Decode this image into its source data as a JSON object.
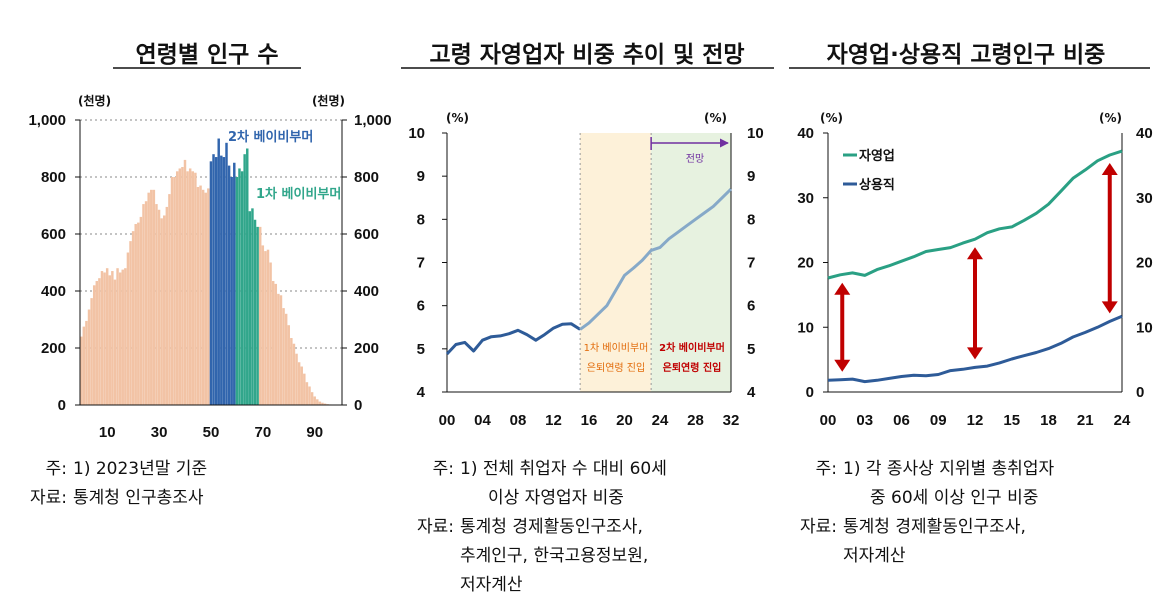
{
  "charts": [
    {
      "title": "연령별 인구 수",
      "unit_left": "(천명)",
      "unit_right": "(천명)",
      "annotations": [
        "2차 베이비부머",
        "1차 베이비부머"
      ],
      "notes": [
        {
          "prefix": "주:",
          "text": "1) 2023년말 기준"
        },
        {
          "prefix": "자료:",
          "text": "통계청 인구총조사"
        }
      ]
    },
    {
      "title": "고령 자영업자 비중 추이 및 전망",
      "unit_left": "(%)",
      "unit_right": "(%)",
      "annotations": [
        "전망",
        "1차 베이비부머",
        "은퇴연령 진입",
        "2차 베이비부머",
        "은퇴연령 진입"
      ],
      "notes": [
        {
          "prefix": "주:",
          "text": "1) 전체 취업자 수 대비 60세"
        },
        {
          "prefix": "",
          "text": "이상 자영업자 비중"
        },
        {
          "prefix": "자료:",
          "text": "통계청 경제활동인구조사,"
        },
        {
          "prefix": "",
          "text": "추계인구, 한국고용정보원,"
        },
        {
          "prefix": "",
          "text": "저자계산"
        }
      ]
    },
    {
      "title": "자영업·상용직 고령인구 비중",
      "unit_left": "(%)",
      "unit_right": "(%)",
      "notes": [
        {
          "prefix": "주:",
          "text": "1) 각 종사상 지위별 총취업자"
        },
        {
          "prefix": "",
          "text": "중 60세 이상 인구 비중"
        },
        {
          "prefix": "자료:",
          "text": "통계청 경제활동인구조사,"
        },
        {
          "prefix": "",
          "text": "저자계산"
        }
      ]
    }
  ],
  "colors": {
    "bar_peach": "#f2c3a5",
    "bar_blue": "#3165ad",
    "bar_teal": "#31a68b",
    "line_blue": "#2e5b98",
    "line_lightblue": "#86a9c8",
    "line_teal": "#2aa084",
    "arrow_red": "#c00000",
    "band_yellow": "#fdf1d9",
    "band_green": "#e7f2e0",
    "purple": "#7030a0",
    "orange_text": "#e26b0a",
    "red_text": "#c00000"
  },
  "chart_data": [
    {
      "type": "bar",
      "title": "연령별 인구 수",
      "xticks": [
        10,
        30,
        50,
        70,
        90
      ],
      "yticks": [
        0,
        200,
        400,
        600,
        800,
        1000
      ],
      "ylim": [
        0,
        1000
      ],
      "xrange": [
        0,
        100
      ],
      "x": [
        0,
        1,
        2,
        3,
        4,
        5,
        6,
        7,
        8,
        9,
        10,
        11,
        12,
        13,
        14,
        15,
        16,
        17,
        18,
        19,
        20,
        21,
        22,
        23,
        24,
        25,
        26,
        27,
        28,
        29,
        30,
        31,
        32,
        33,
        34,
        35,
        36,
        37,
        38,
        39,
        40,
        41,
        42,
        43,
        44,
        45,
        46,
        47,
        48,
        49,
        50,
        51,
        52,
        53,
        54,
        55,
        56,
        57,
        58,
        59,
        60,
        61,
        62,
        63,
        64,
        65,
        66,
        67,
        68,
        69,
        70,
        71,
        72,
        73,
        74,
        75,
        76,
        77,
        78,
        79,
        80,
        81,
        82,
        83,
        84,
        85,
        86,
        87,
        88,
        89,
        90,
        91,
        92,
        93,
        94,
        95,
        96,
        97,
        98,
        99,
        100
      ],
      "values": [
        240,
        275,
        295,
        335,
        375,
        420,
        435,
        445,
        470,
        465,
        480,
        455,
        470,
        440,
        480,
        465,
        475,
        480,
        535,
        575,
        610,
        635,
        640,
        660,
        705,
        715,
        745,
        755,
        755,
        705,
        685,
        655,
        665,
        695,
        740,
        800,
        800,
        820,
        830,
        835,
        860,
        820,
        830,
        820,
        815,
        765,
        770,
        755,
        745,
        760,
        855,
        880,
        870,
        935,
        875,
        870,
        920,
        840,
        800,
        850,
        800,
        830,
        820,
        880,
        900,
        680,
        690,
        650,
        625,
        625,
        560,
        540,
        545,
        500,
        435,
        425,
        390,
        385,
        340,
        320,
        280,
        235,
        215,
        180,
        150,
        135,
        110,
        80,
        65,
        45,
        30,
        20,
        12,
        8,
        5,
        3,
        2,
        1,
        1,
        0,
        0
      ],
      "highlights": [
        {
          "name": "2차 베이비부머",
          "from": 50,
          "to": 59
        },
        {
          "name": "1차 베이비부머",
          "from": 60,
          "to": 68
        }
      ]
    },
    {
      "type": "line",
      "title": "고령 자영업자 비중 추이 및 전망",
      "xticks": [
        "00",
        "04",
        "08",
        "12",
        "16",
        "20",
        "24",
        "28",
        "32"
      ],
      "yticks": [
        4,
        5,
        6,
        7,
        8,
        9,
        10
      ],
      "ylim": [
        4,
        10
      ],
      "xrange": [
        2000,
        2032
      ],
      "series": [
        {
          "x": [
            2000,
            2001,
            2002,
            2003,
            2004,
            2005,
            2006,
            2007,
            2008,
            2009,
            2010,
            2011,
            2012,
            2013,
            2014,
            2015
          ],
          "values": [
            4.88,
            5.1,
            5.15,
            4.95,
            5.2,
            5.28,
            5.3,
            5.35,
            5.43,
            5.33,
            5.2,
            5.33,
            5.48,
            5.57,
            5.58,
            5.45
          ]
        },
        {
          "x": [
            2015,
            2016,
            2017,
            2018,
            2019,
            2020,
            2021,
            2022,
            2023,
            2024,
            2025,
            2026,
            2027,
            2028,
            2029,
            2030,
            2031,
            2032
          ],
          "values": [
            5.45,
            5.6,
            5.8,
            6.0,
            6.35,
            6.7,
            6.87,
            7.05,
            7.28,
            7.35,
            7.55,
            7.7,
            7.85,
            8.0,
            8.15,
            8.3,
            8.5,
            8.7
          ]
        }
      ],
      "bands": [
        {
          "from": 2015,
          "to": 2023
        },
        {
          "from": 2023,
          "to": 2032
        }
      ],
      "forecast_from": 2023
    },
    {
      "type": "line",
      "title": "자영업·상용직 고령인구 비중",
      "xticks": [
        "00",
        "03",
        "06",
        "09",
        "12",
        "15",
        "18",
        "21",
        "24"
      ],
      "yticks": [
        0,
        10,
        20,
        30,
        40
      ],
      "ylim": [
        0,
        40
      ],
      "xrange": [
        2000,
        2024
      ],
      "series": [
        {
          "name": "자영업",
          "x": [
            2000,
            2001,
            2002,
            2003,
            2004,
            2005,
            2006,
            2007,
            2008,
            2009,
            2010,
            2011,
            2012,
            2013,
            2014,
            2015,
            2016,
            2017,
            2018,
            2019,
            2020,
            2021,
            2022,
            2023,
            2024
          ],
          "values": [
            17.6,
            18.1,
            18.4,
            18.0,
            18.9,
            19.5,
            20.2,
            20.9,
            21.7,
            22.0,
            22.3,
            23.0,
            23.6,
            24.6,
            25.2,
            25.5,
            26.5,
            27.6,
            29.0,
            31.0,
            33.0,
            34.3,
            35.7,
            36.6,
            37.2
          ]
        },
        {
          "name": "상용직",
          "x": [
            2000,
            2001,
            2002,
            2003,
            2004,
            2005,
            2006,
            2007,
            2008,
            2009,
            2010,
            2011,
            2012,
            2013,
            2014,
            2015,
            2016,
            2017,
            2018,
            2019,
            2020,
            2021,
            2022,
            2023,
            2024
          ],
          "values": [
            1.8,
            1.9,
            2.0,
            1.6,
            1.8,
            2.1,
            2.4,
            2.6,
            2.5,
            2.7,
            3.3,
            3.5,
            3.8,
            4.0,
            4.5,
            5.1,
            5.6,
            6.1,
            6.7,
            7.5,
            8.5,
            9.2,
            10.0,
            10.9,
            11.7
          ]
        }
      ],
      "arrows": [
        2001,
        2012,
        2023
      ]
    }
  ]
}
